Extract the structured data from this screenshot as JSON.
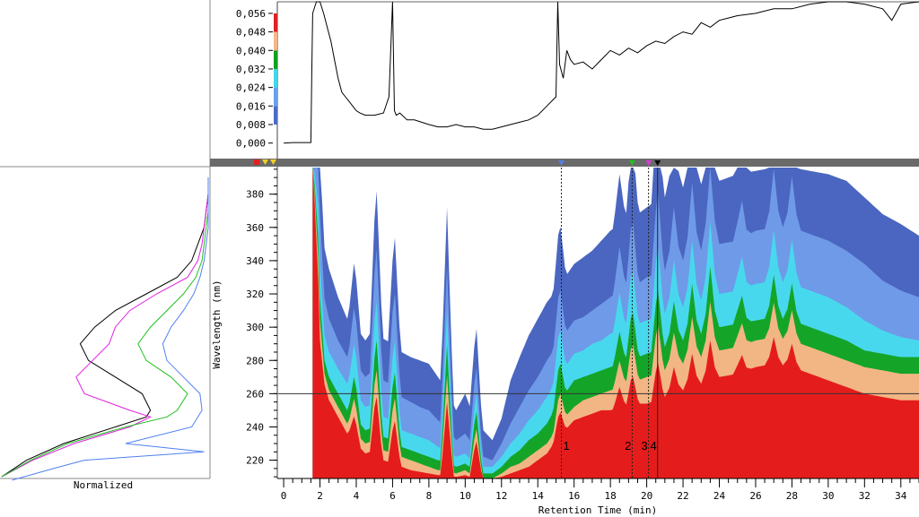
{
  "chart_data": [
    {
      "type": "line",
      "title": "",
      "xlabel": "",
      "ylabel": "",
      "xlim": [
        -0.3,
        35
      ],
      "ylim": [
        -0.004,
        0.061
      ],
      "y_ticks": [
        "0,000",
        "0,008",
        "0,016",
        "0,024",
        "0,032",
        "0,040",
        "0,048",
        "0,056"
      ],
      "series": [
        {
          "x": [
            0,
            0.5,
            1.0,
            1.5,
            1.55,
            1.6,
            1.8,
            2.0,
            2.2,
            2.4,
            2.6,
            2.8,
            3.0,
            3.2,
            3.4,
            3.6,
            3.8,
            4.0,
            4.2,
            4.5,
            5.0,
            5.5,
            5.8,
            6.0,
            6.1,
            6.2,
            6.4,
            6.8,
            7.2,
            7.6,
            8.0,
            8.5,
            9.0,
            9.5,
            10.0,
            10.5,
            11.0,
            11.5,
            12.0,
            12.5,
            13.0,
            13.5,
            14.0,
            14.5,
            15.0,
            15.1,
            15.2,
            15.4,
            15.6,
            15.8,
            16.0,
            16.5,
            17.0,
            17.5,
            18.0,
            18.5,
            19.0,
            19.5,
            20.0,
            20.5,
            21.0,
            21.5,
            22.0,
            22.5,
            23.0,
            23.5,
            24.0,
            24.5,
            25.0,
            26.0,
            27.0,
            28.0,
            29.0,
            30.0,
            31.0,
            32.0,
            33.0,
            33.5,
            34.0,
            35.0
          ],
          "y": [
            0.0,
            0.0002,
            0.0002,
            0.0002,
            0.03,
            0.056,
            0.07,
            0.068,
            0.056,
            0.05,
            0.044,
            0.036,
            0.028,
            0.022,
            0.02,
            0.018,
            0.016,
            0.014,
            0.013,
            0.012,
            0.012,
            0.013,
            0.02,
            0.07,
            0.014,
            0.012,
            0.013,
            0.01,
            0.01,
            0.009,
            0.008,
            0.007,
            0.007,
            0.008,
            0.007,
            0.007,
            0.006,
            0.006,
            0.007,
            0.008,
            0.009,
            0.01,
            0.012,
            0.016,
            0.02,
            0.07,
            0.034,
            0.028,
            0.04,
            0.036,
            0.034,
            0.035,
            0.032,
            0.036,
            0.04,
            0.038,
            0.041,
            0.039,
            0.042,
            0.044,
            0.043,
            0.046,
            0.048,
            0.047,
            0.052,
            0.05,
            0.053,
            0.054,
            0.055,
            0.056,
            0.058,
            0.058,
            0.06,
            0.062,
            0.061,
            0.06,
            0.058,
            0.053,
            0.06,
            0.061
          ]
        }
      ],
      "legend_colors": [
        "#4a6cc8",
        "#6aa0ee",
        "#40d8e8",
        "#10a020",
        "#f4b88a",
        "#e02020"
      ]
    },
    {
      "type": "heatmap",
      "title": "",
      "xlabel": "Retention Time (min)",
      "ylabel": "Wavelength (nm)",
      "xlim": [
        -0.3,
        35
      ],
      "ylim": [
        209,
        396
      ],
      "x_ticks": [
        "0",
        "2",
        "4",
        "6",
        "8",
        "10",
        "12",
        "14",
        "16",
        "18",
        "20",
        "22",
        "24",
        "26",
        "28",
        "30",
        "32",
        "34"
      ],
      "y_ticks": [
        "220",
        "240",
        "260",
        "280",
        "300",
        "320",
        "340",
        "360",
        "380"
      ],
      "crosshair_wavelength": 260,
      "markers": [
        {
          "label": "1",
          "time": 15.3,
          "color": "#5080e8"
        },
        {
          "label": "2",
          "time": 19.2,
          "color": "#20c020"
        },
        {
          "label": "3",
          "time": 20.1,
          "color": "#d040d0"
        },
        {
          "label": "4",
          "time": 20.6,
          "color": "#000000"
        }
      ],
      "contour_levels": [
        {
          "level": "0,008",
          "color": "#4a66c0"
        },
        {
          "level": "0,016",
          "color": "#6f9ae8"
        },
        {
          "level": "0,024",
          "color": "#48d8ee"
        },
        {
          "level": "0,032",
          "color": "#14a528"
        },
        {
          "level": "0,040",
          "color": "#f2b684"
        },
        {
          "level": "0,048",
          "color": "#e51c1c"
        }
      ]
    },
    {
      "type": "line",
      "title": "",
      "xlabel": "Normalized",
      "series": [
        {
          "color": "#000000",
          "wl": [
            210,
            220,
            230,
            240,
            246,
            250,
            260,
            270,
            280,
            290,
            300,
            310,
            320,
            330,
            340,
            350,
            360,
            370,
            380,
            390
          ],
          "v": [
            0.0,
            0.12,
            0.3,
            0.55,
            0.7,
            0.72,
            0.68,
            0.55,
            0.42,
            0.38,
            0.45,
            0.55,
            0.7,
            0.85,
            0.92,
            0.95,
            0.98,
            0.99,
            1.0,
            1.0
          ]
        },
        {
          "color": "#e020e0",
          "wl": [
            210,
            220,
            230,
            240,
            246,
            250,
            260,
            270,
            280,
            290,
            300,
            310,
            320,
            330,
            340,
            350,
            360,
            370,
            380,
            390
          ],
          "v": [
            0.0,
            0.15,
            0.35,
            0.62,
            0.72,
            0.62,
            0.4,
            0.36,
            0.44,
            0.52,
            0.55,
            0.62,
            0.75,
            0.9,
            0.95,
            0.97,
            0.98,
            0.99,
            1.0,
            1.0
          ]
        },
        {
          "color": "#20c020",
          "wl": [
            210,
            220,
            230,
            240,
            246,
            250,
            260,
            270,
            280,
            290,
            300,
            310,
            320,
            330,
            340,
            350,
            360,
            370,
            380,
            390
          ],
          "v": [
            0.0,
            0.14,
            0.32,
            0.6,
            0.8,
            0.85,
            0.9,
            0.82,
            0.7,
            0.66,
            0.72,
            0.8,
            0.88,
            0.94,
            0.97,
            0.98,
            0.99,
            1.0,
            1.0,
            1.0
          ]
        },
        {
          "color": "#5080f0",
          "wl": [
            208,
            215,
            220,
            225,
            230,
            240,
            250,
            260,
            270,
            280,
            290,
            300,
            310,
            320,
            330,
            340,
            350,
            360,
            380,
            390
          ],
          "v": [
            0.05,
            0.25,
            0.4,
            0.98,
            0.6,
            0.92,
            0.97,
            0.96,
            0.88,
            0.8,
            0.78,
            0.82,
            0.88,
            0.93,
            0.96,
            0.98,
            0.99,
            1.0,
            1.0,
            1.0
          ]
        }
      ]
    }
  ]
}
